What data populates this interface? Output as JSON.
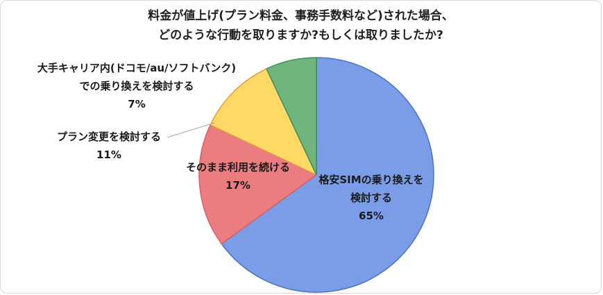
{
  "chart_data": {
    "type": "pie",
    "title_lines": [
      "料金が値上げ(プラン料金、事務手数料など)された場合、",
      "どのような行動を取りますか?もしくは取りましたか?"
    ],
    "legend_position": "none",
    "start_angle_deg": 0,
    "clockwise": true,
    "slices": [
      {
        "label": "格安SIMの乗り換えを検討する",
        "value": 65,
        "percent_text": "65%",
        "fill": "#7B9DE8",
        "stroke": "#4472C4"
      },
      {
        "label": "そのまま利用を続ける",
        "value": 17,
        "percent_text": "17%",
        "fill": "#EB7D80",
        "stroke": "#DB5E63"
      },
      {
        "label": "プラン変更を検討する",
        "value": 11,
        "percent_text": "11%",
        "fill": "#FFD966",
        "stroke": "#E39A3B"
      },
      {
        "label": "大手キャリア内(ドコモ/au/ソフトバンク)での乗り換えを検討する",
        "value": 7,
        "percent_text": "7%",
        "fill": "#6FB57D",
        "stroke": "#3F8F55"
      }
    ]
  },
  "callouts": {
    "main": {
      "lines": [
        "格安SIMの乗り換えを",
        "検討する",
        "65%"
      ]
    },
    "keep": {
      "lines": [
        "そのまま利用を続ける",
        "17%"
      ]
    },
    "plan": {
      "lines": [
        "プラン変更を検討する",
        "11%"
      ]
    },
    "carrier": {
      "lines": [
        "大手キャリア内(ドコモ/au/ソフトバンク)",
        "での乗り換えを検討する",
        "7%"
      ]
    }
  }
}
